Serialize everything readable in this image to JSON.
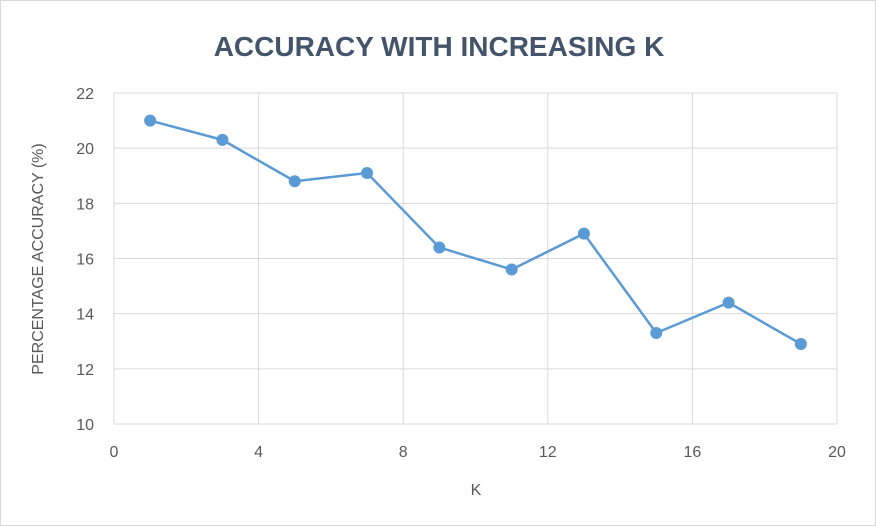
{
  "chart_data": {
    "type": "line",
    "title": "ACCURACY WITH INCREASING K",
    "xlabel": "K",
    "ylabel": "PERCENTAGE ACCURACY (%)",
    "xlim": [
      0,
      20
    ],
    "ylim": [
      10,
      22
    ],
    "x_ticks": [
      0,
      4,
      8,
      12,
      16,
      20
    ],
    "y_ticks": [
      10,
      12,
      14,
      16,
      18,
      20,
      22
    ],
    "grid": true,
    "legend": "none",
    "color": "#5b9bd5",
    "series": [
      {
        "x": [
          1,
          3,
          5,
          7,
          9,
          11,
          13,
          15,
          17,
          19
        ],
        "values": [
          21.0,
          20.3,
          18.8,
          19.1,
          16.4,
          15.6,
          16.9,
          13.3,
          14.4,
          12.9
        ]
      }
    ]
  }
}
